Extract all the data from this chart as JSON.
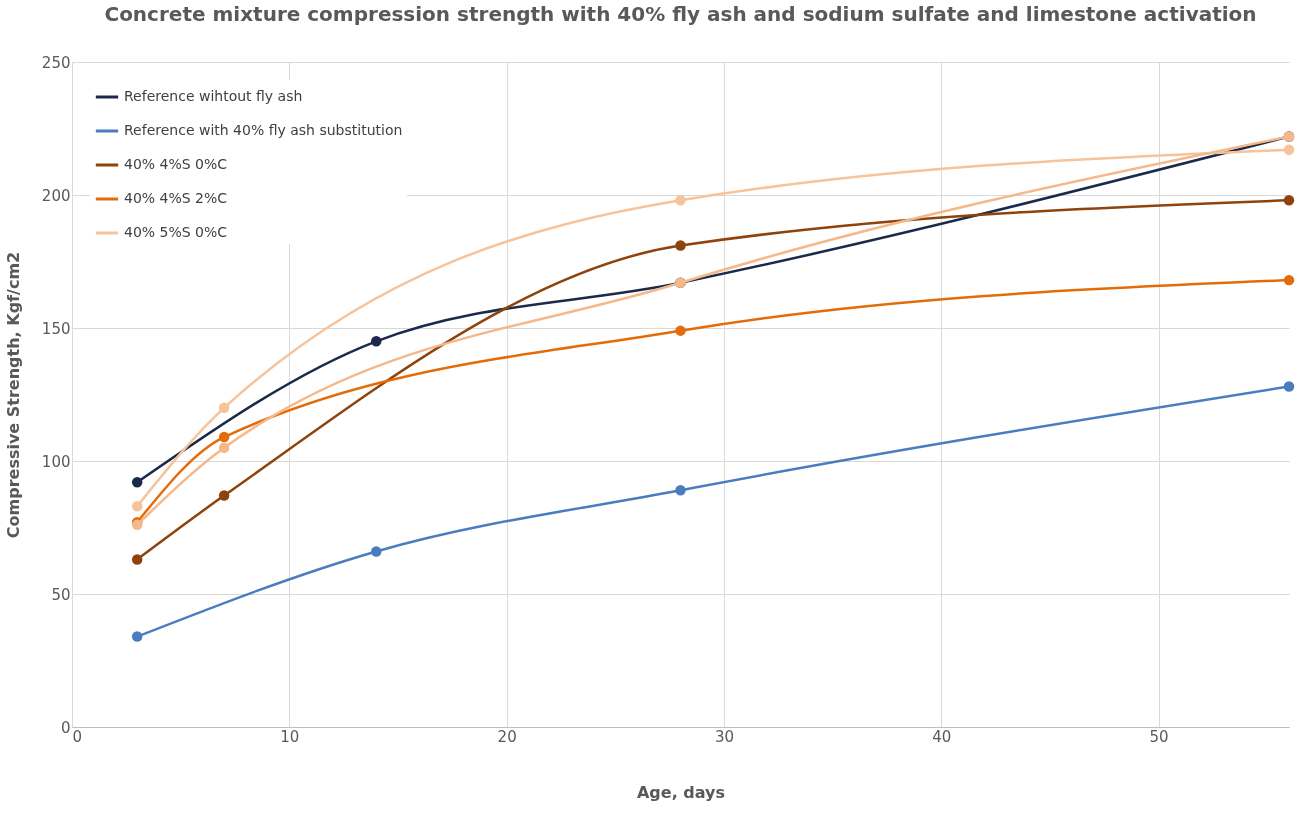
{
  "chart_data": {
    "type": "line",
    "title": "Concrete mixture compression strength with 40% fly ash and sodium sulfate and limestone activation",
    "xlabel": "Age, days",
    "ylabel": "Compressive Strength, Kgf/cm2",
    "xlim": [
      0,
      56
    ],
    "xticks": [
      0,
      10,
      20,
      30,
      40,
      50
    ],
    "ylim": [
      0,
      250
    ],
    "yticks": [
      0,
      50,
      100,
      150,
      200,
      250
    ],
    "grid": true,
    "legend": "top left",
    "marker": "circle",
    "line_style": "solid",
    "series": [
      {
        "name": "Reference wihtout fly ash",
        "color": "#1b2a4a",
        "x": [
          3,
          14,
          28,
          56
        ],
        "values": [
          92,
          145,
          167,
          222
        ]
      },
      {
        "name": "Reference with 40% fly ash substitution",
        "color": "#4a7cc0",
        "x": [
          3,
          14,
          28,
          56
        ],
        "values": [
          34,
          66,
          89,
          128
        ]
      },
      {
        "name": "40% 4%S 0%C",
        "color": "#8e430c",
        "x": [
          3,
          7,
          28,
          56
        ],
        "values": [
          63,
          87,
          181,
          198
        ]
      },
      {
        "name": "40% 4%S 2%C",
        "color": "#e36c0a",
        "x": [
          3,
          7,
          28,
          56
        ],
        "values": [
          77,
          109,
          149,
          168
        ]
      },
      {
        "name": "40% 5%S 0%C",
        "color": "#f7c39a",
        "x": [
          3,
          7,
          28,
          56
        ],
        "values": [
          83,
          120,
          198,
          217
        ]
      },
      {
        "color": "#f5b88a",
        "x": [
          3,
          7,
          28,
          56
        ],
        "values": [
          76,
          105,
          167,
          222
        ]
      }
    ]
  }
}
